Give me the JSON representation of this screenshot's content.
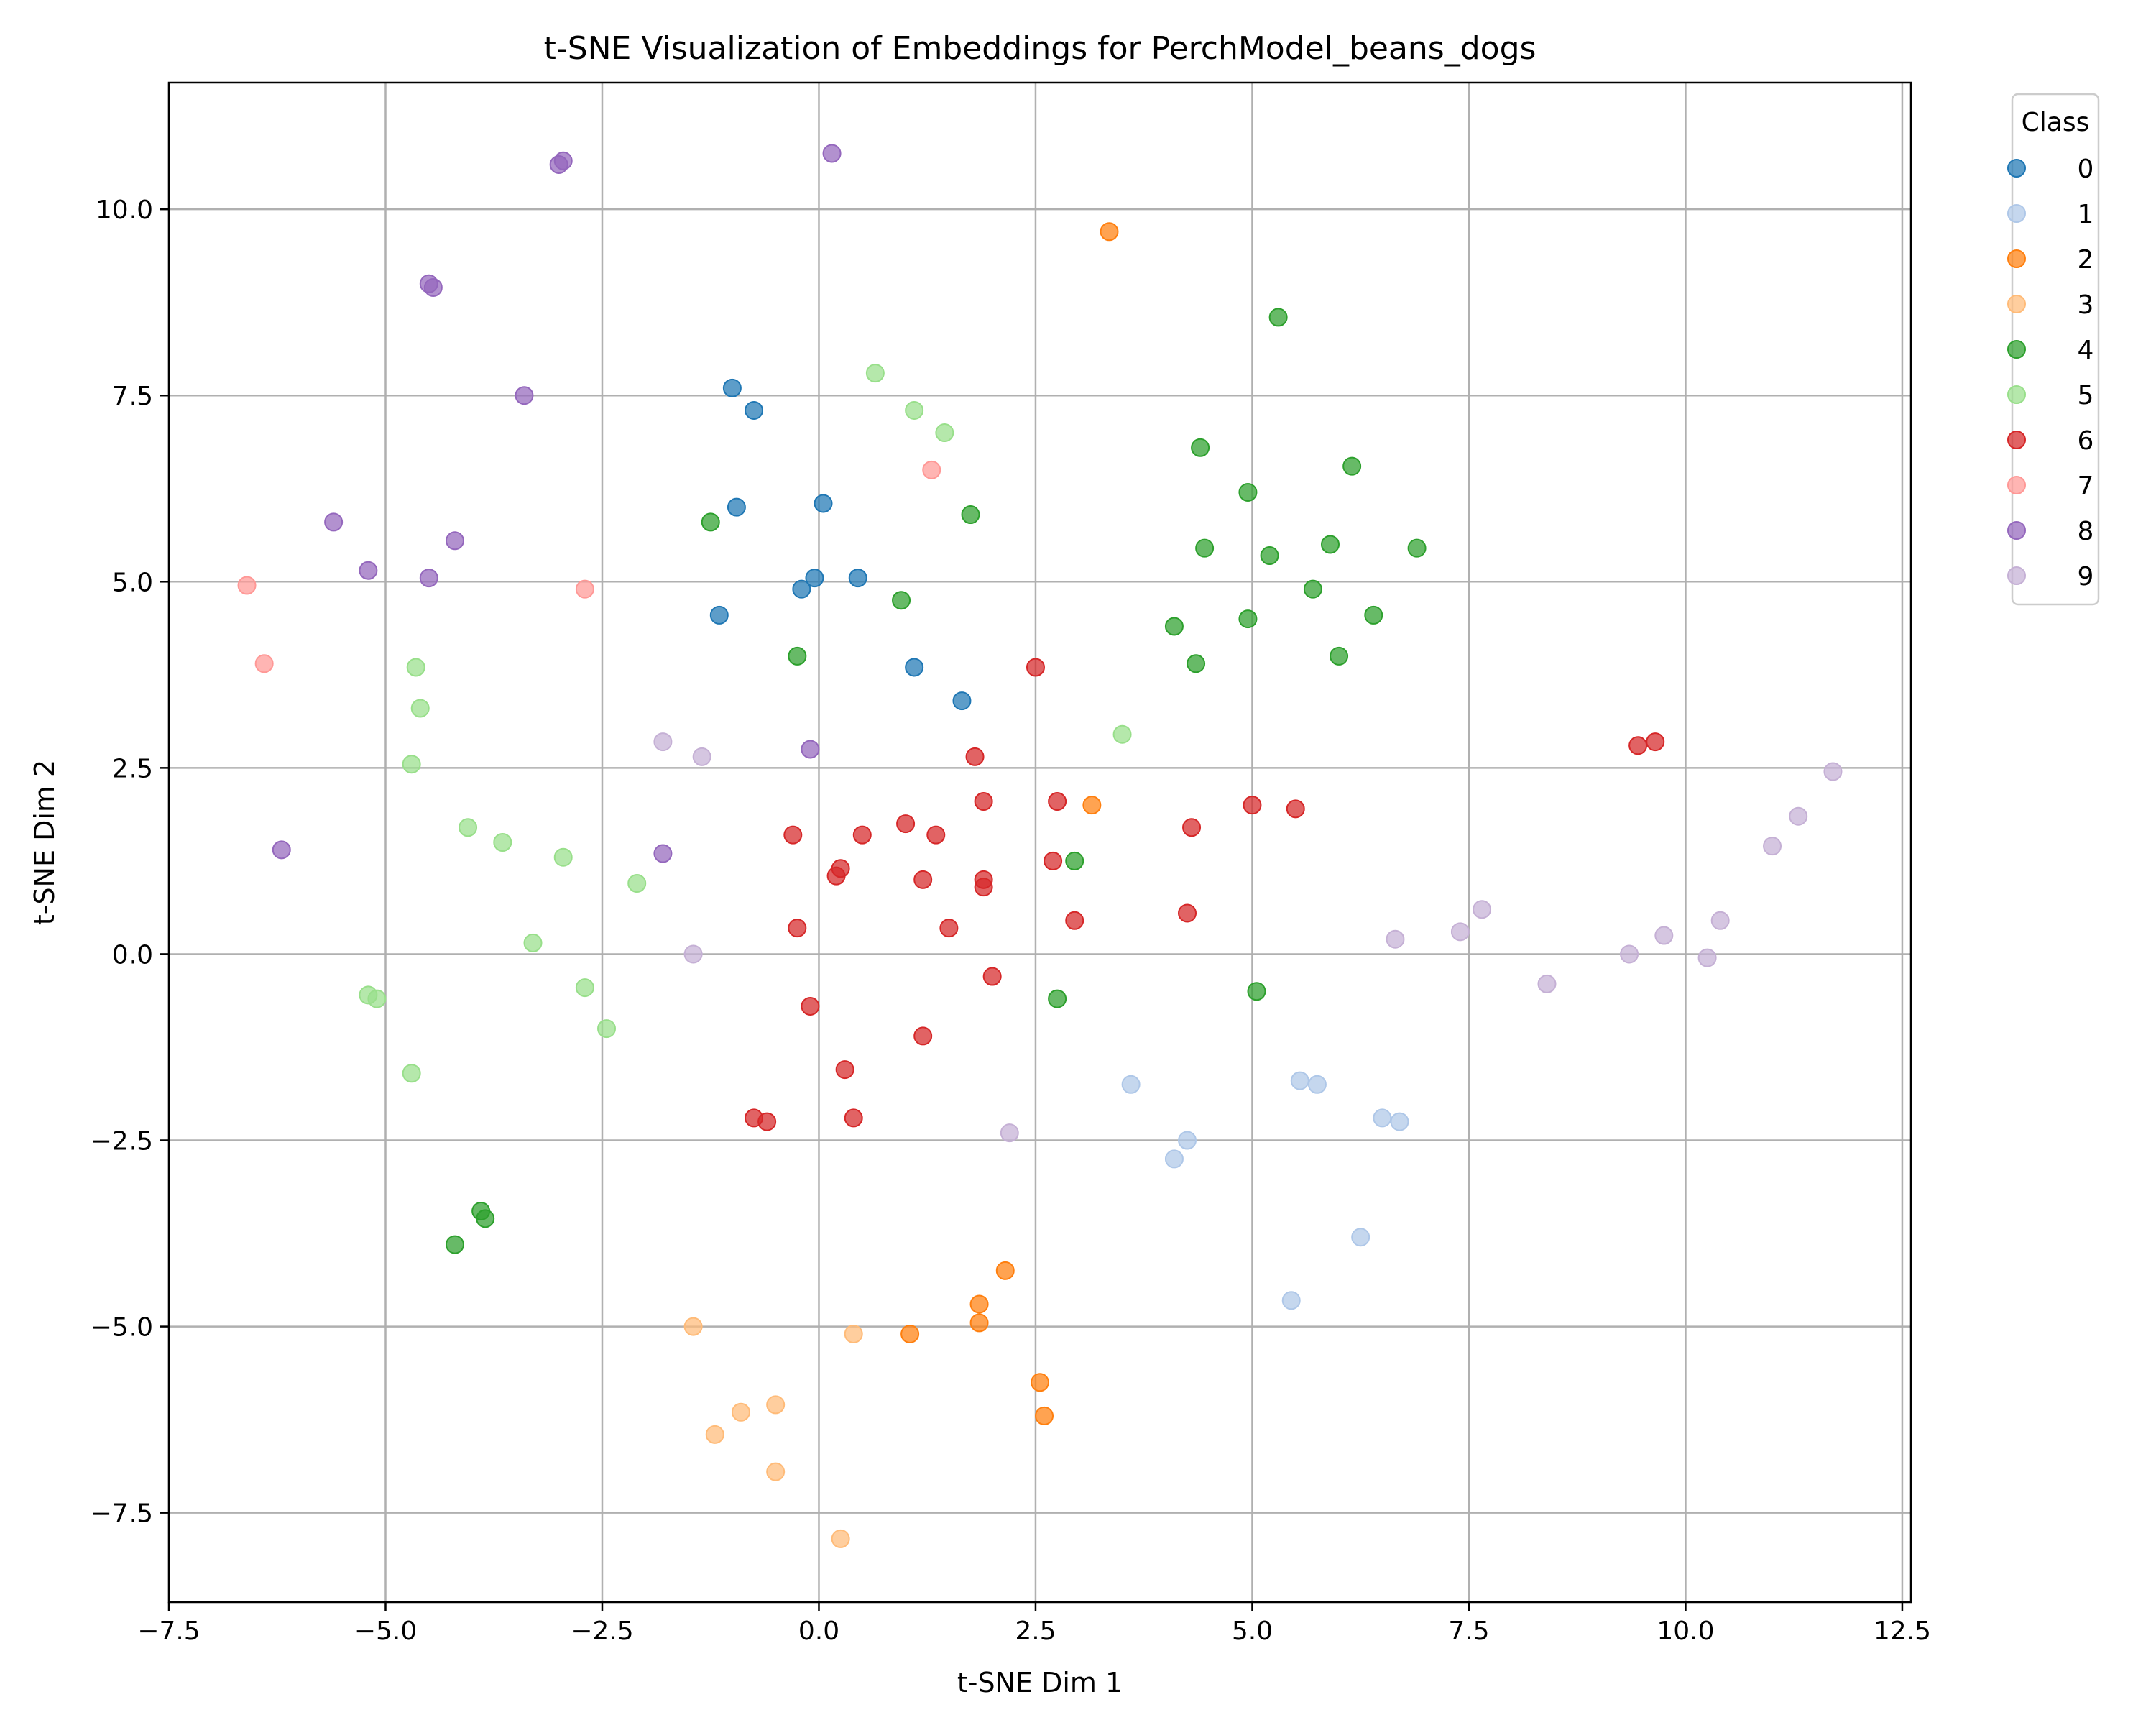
{
  "chart_data": {
    "type": "scatter",
    "title": "t-SNE Visualization of Embeddings for PerchModel_beans_dogs",
    "xlabel": "t-SNE Dim 1",
    "ylabel": "t-SNE Dim 2",
    "xlim": [
      -7.5,
      12.6
    ],
    "ylim": [
      -8.7,
      11.7
    ],
    "x_ticks": [
      -7.5,
      -5.0,
      -2.5,
      0.0,
      2.5,
      5.0,
      7.5,
      10.0,
      12.5
    ],
    "x_tick_labels": [
      "−7.5",
      "−5.0",
      "−2.5",
      "0.0",
      "2.5",
      "5.0",
      "7.5",
      "10.0",
      "12.5"
    ],
    "y_ticks": [
      -7.5,
      -5.0,
      -2.5,
      0.0,
      2.5,
      5.0,
      7.5,
      10.0
    ],
    "y_tick_labels": [
      "−7.5",
      "−5.0",
      "−2.5",
      "0.0",
      "2.5",
      "5.0",
      "7.5",
      "10.0"
    ],
    "grid": true,
    "legend": {
      "title": "Class",
      "placement": "outside-right"
    },
    "series": [
      {
        "name": "0",
        "color": "#1f77b4",
        "points": [
          [
            -1.0,
            7.6
          ],
          [
            -0.75,
            7.3
          ],
          [
            -0.95,
            6.0
          ],
          [
            0.05,
            6.05
          ],
          [
            -0.05,
            5.05
          ],
          [
            -0.2,
            4.9
          ],
          [
            0.45,
            5.05
          ],
          [
            -1.15,
            4.55
          ],
          [
            1.1,
            3.85
          ],
          [
            1.65,
            3.4
          ]
        ]
      },
      {
        "name": "1",
        "color": "#aec7e8",
        "points": [
          [
            3.6,
            -1.75
          ],
          [
            5.55,
            -1.7
          ],
          [
            5.75,
            -1.75
          ],
          [
            6.5,
            -2.2
          ],
          [
            6.7,
            -2.25
          ],
          [
            4.25,
            -2.5
          ],
          [
            4.1,
            -2.75
          ],
          [
            6.25,
            -3.8
          ],
          [
            5.45,
            -4.65
          ]
        ]
      },
      {
        "name": "2",
        "color": "#ff7f0e",
        "points": [
          [
            3.35,
            9.7
          ],
          [
            3.15,
            2.0
          ],
          [
            2.15,
            -4.25
          ],
          [
            1.85,
            -4.7
          ],
          [
            1.85,
            -4.95
          ],
          [
            1.05,
            -5.1
          ],
          [
            2.55,
            -5.75
          ],
          [
            2.6,
            -6.2
          ]
        ]
      },
      {
        "name": "3",
        "color": "#ffbb78",
        "points": [
          [
            -1.45,
            -5.0
          ],
          [
            0.4,
            -5.1
          ],
          [
            -0.5,
            -6.05
          ],
          [
            -0.9,
            -6.15
          ],
          [
            -1.2,
            -6.45
          ],
          [
            -0.5,
            -6.95
          ],
          [
            0.25,
            -7.85
          ]
        ]
      },
      {
        "name": "4",
        "color": "#2ca02c",
        "points": [
          [
            5.3,
            8.55
          ],
          [
            4.4,
            6.8
          ],
          [
            6.15,
            6.55
          ],
          [
            4.95,
            6.2
          ],
          [
            1.75,
            5.9
          ],
          [
            -1.25,
            5.8
          ],
          [
            4.45,
            5.45
          ],
          [
            5.2,
            5.35
          ],
          [
            5.9,
            5.5
          ],
          [
            6.9,
            5.45
          ],
          [
            5.7,
            4.9
          ],
          [
            0.95,
            4.75
          ],
          [
            6.4,
            4.55
          ],
          [
            4.95,
            4.5
          ],
          [
            4.1,
            4.4
          ],
          [
            -0.25,
            4.0
          ],
          [
            6.0,
            4.0
          ],
          [
            4.35,
            3.9
          ],
          [
            2.95,
            1.25
          ],
          [
            2.75,
            -0.6
          ],
          [
            5.05,
            -0.5
          ],
          [
            -3.9,
            -3.45
          ],
          [
            -3.85,
            -3.55
          ],
          [
            -4.2,
            -3.9
          ]
        ]
      },
      {
        "name": "5",
        "color": "#98df8a",
        "points": [
          [
            0.65,
            7.8
          ],
          [
            1.1,
            7.3
          ],
          [
            1.45,
            7.0
          ],
          [
            -4.65,
            3.85
          ],
          [
            -4.6,
            3.3
          ],
          [
            3.5,
            2.95
          ],
          [
            -4.7,
            2.55
          ],
          [
            -4.05,
            1.7
          ],
          [
            -3.65,
            1.5
          ],
          [
            -2.95,
            1.3
          ],
          [
            -2.1,
            0.95
          ],
          [
            -3.3,
            0.15
          ],
          [
            -2.7,
            -0.45
          ],
          [
            -5.2,
            -0.55
          ],
          [
            -5.1,
            -0.6
          ],
          [
            -2.45,
            -1.0
          ],
          [
            -4.7,
            -1.6
          ]
        ]
      },
      {
        "name": "6",
        "color": "#d62728",
        "points": [
          [
            2.5,
            3.85
          ],
          [
            9.45,
            2.8
          ],
          [
            9.65,
            2.85
          ],
          [
            1.8,
            2.65
          ],
          [
            1.9,
            2.05
          ],
          [
            2.75,
            2.05
          ],
          [
            5.0,
            2.0
          ],
          [
            5.5,
            1.95
          ],
          [
            1.0,
            1.75
          ],
          [
            4.3,
            1.7
          ],
          [
            -0.3,
            1.6
          ],
          [
            0.5,
            1.6
          ],
          [
            1.35,
            1.6
          ],
          [
            0.25,
            1.15
          ],
          [
            0.2,
            1.05
          ],
          [
            1.2,
            1.0
          ],
          [
            1.9,
            1.0
          ],
          [
            1.9,
            0.9
          ],
          [
            2.7,
            1.25
          ],
          [
            1.5,
            0.35
          ],
          [
            -0.25,
            0.35
          ],
          [
            2.95,
            0.45
          ],
          [
            4.25,
            0.55
          ],
          [
            -0.1,
            -0.7
          ],
          [
            2.0,
            -0.3
          ],
          [
            1.2,
            -1.1
          ],
          [
            0.3,
            -1.55
          ],
          [
            -0.75,
            -2.2
          ],
          [
            -0.6,
            -2.25
          ],
          [
            0.4,
            -2.2
          ]
        ]
      },
      {
        "name": "7",
        "color": "#ff9896",
        "points": [
          [
            1.3,
            6.5
          ],
          [
            -6.6,
            4.95
          ],
          [
            -2.7,
            4.9
          ],
          [
            -6.4,
            3.9
          ]
        ]
      },
      {
        "name": "8",
        "color": "#9467bd",
        "points": [
          [
            0.15,
            10.75
          ],
          [
            -3.0,
            10.6
          ],
          [
            -2.95,
            10.65
          ],
          [
            -4.5,
            9.0
          ],
          [
            -4.45,
            8.95
          ],
          [
            -3.4,
            7.5
          ],
          [
            -5.6,
            5.8
          ],
          [
            -4.2,
            5.55
          ],
          [
            -5.2,
            5.15
          ],
          [
            -4.5,
            5.05
          ],
          [
            -0.1,
            2.75
          ],
          [
            -1.8,
            1.35
          ],
          [
            -6.2,
            1.4
          ]
        ]
      },
      {
        "name": "9",
        "color": "#c5b0d5",
        "points": [
          [
            -1.8,
            2.85
          ],
          [
            -1.35,
            2.65
          ],
          [
            11.7,
            2.45
          ],
          [
            11.3,
            1.85
          ],
          [
            11.0,
            1.45
          ],
          [
            7.65,
            0.6
          ],
          [
            10.4,
            0.45
          ],
          [
            7.4,
            0.3
          ],
          [
            9.75,
            0.25
          ],
          [
            6.65,
            0.2
          ],
          [
            -1.45,
            0.0
          ],
          [
            9.35,
            0.0
          ],
          [
            10.25,
            -0.05
          ],
          [
            8.4,
            -0.4
          ],
          [
            2.2,
            -2.4
          ]
        ]
      }
    ]
  }
}
